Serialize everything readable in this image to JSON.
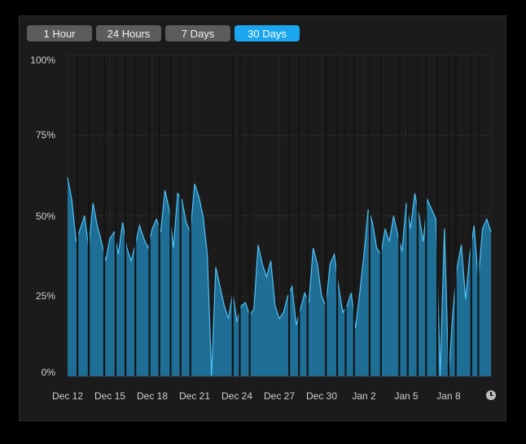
{
  "range_buttons": [
    {
      "label": "1 Hour",
      "active": false
    },
    {
      "label": "24 Hours",
      "active": false
    },
    {
      "label": "7 Days",
      "active": false
    },
    {
      "label": "30 Days",
      "active": true
    }
  ],
  "colors": {
    "accent": "#1aa7f0",
    "area_fill": "#1e6e96",
    "line": "#4fc3f7",
    "gap": "#141414"
  },
  "icons": {
    "time_icon": "clock-icon"
  },
  "chart_data": {
    "type": "area",
    "title": "",
    "xlabel": "",
    "ylabel": "",
    "y_tick_labels": [
      "100%",
      "75%",
      "50%",
      "25%",
      "0%"
    ],
    "x_tick_labels": [
      "Dec 12",
      "Dec 15",
      "Dec 18",
      "Dec 21",
      "Dec 24",
      "Dec 27",
      "Dec 30",
      "Jan 2",
      "Jan 5",
      "Jan 8"
    ],
    "ylim": [
      0,
      100
    ],
    "xlim": [
      0,
      30
    ],
    "grid": true,
    "series": [
      {
        "x": [
          0.0,
          0.3,
          0.6,
          0.9,
          1.2,
          1.5,
          1.8,
          2.1,
          2.4,
          2.7,
          3.0,
          3.3,
          3.6,
          3.9,
          4.2,
          4.5,
          4.8,
          5.1,
          5.4,
          5.7,
          6.0,
          6.3,
          6.6,
          6.9,
          7.2,
          7.5,
          7.8,
          8.1,
          8.4,
          8.7,
          9.0,
          9.3,
          9.6,
          9.9,
          10.2,
          10.5,
          10.8,
          11.1,
          11.4,
          11.7,
          12.0,
          12.3,
          12.6,
          12.9,
          13.2,
          13.5,
          13.8,
          14.1,
          14.4,
          14.7,
          15.0,
          15.3,
          15.6,
          15.9,
          16.2,
          16.5,
          16.8,
          17.1,
          17.4,
          17.7,
          18.0,
          18.3,
          18.6,
          18.9,
          19.2,
          19.5,
          19.8,
          20.1,
          20.4,
          20.7,
          21.0,
          21.3,
          21.6,
          21.9,
          22.2,
          22.5,
          22.8,
          23.1,
          23.4,
          23.7,
          24.0,
          24.3,
          24.6,
          24.9,
          25.2,
          25.5,
          25.8,
          26.1,
          26.4,
          26.7,
          27.0,
          27.3,
          27.6,
          27.9,
          28.2,
          28.5,
          28.8,
          29.1,
          29.4,
          29.7,
          30.0
        ],
        "values": [
          62,
          55,
          42,
          46,
          50,
          40,
          54,
          47,
          42,
          36,
          43,
          45,
          38,
          48,
          40,
          36,
          41,
          47,
          43,
          40,
          46,
          49,
          45,
          58,
          52,
          40,
          57,
          55,
          48,
          45,
          60,
          56,
          50,
          38,
          0,
          34,
          28,
          22,
          18,
          26,
          17,
          22,
          23,
          19,
          21,
          41,
          35,
          31,
          36,
          22,
          18,
          20,
          25,
          28,
          16,
          21,
          26,
          23,
          40,
          35,
          25,
          22,
          35,
          38,
          28,
          20,
          22,
          26,
          15,
          26,
          38,
          52,
          48,
          40,
          38,
          46,
          42,
          50,
          44,
          39,
          54,
          46,
          57,
          50,
          42,
          55,
          52,
          49,
          0,
          46,
          0,
          20,
          34,
          41,
          24,
          38,
          47,
          30,
          46,
          49,
          45
        ]
      }
    ],
    "gaps_at_x": [
      0.7,
      1.5,
      2.6,
      3.4,
      4.1,
      4.8,
      5.8,
      6.5,
      7.3,
      8.0,
      8.7,
      11.7,
      12.2,
      12.9,
      15.7,
      16.4,
      17.0,
      18.3,
      19.1,
      19.7,
      20.3,
      21.4,
      22.2,
      23.5,
      24.1,
      24.8,
      25.4,
      26.2,
      27.0,
      27.5,
      28.6,
      29.1
    ]
  }
}
